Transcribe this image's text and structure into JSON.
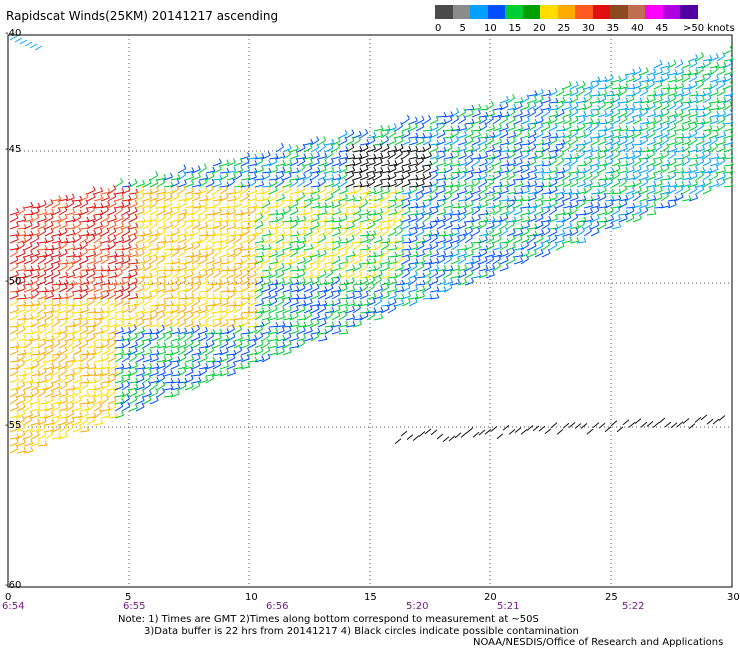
{
  "header": {
    "title": "Rapidscat Winds(25KM) 20141217 ascending"
  },
  "legend": {
    "colors": [
      "#4a4a4a",
      "#8c8c8c",
      "#00a0ff",
      "#0050ff",
      "#00cc33",
      "#00a000",
      "#ffdd00",
      "#ffaa00",
      "#ff5a20",
      "#e01010",
      "#8c4a20",
      "#c07050",
      "#ff00ff",
      "#b000e0",
      "#5000a0"
    ],
    "labels": [
      "0",
      "5",
      "10",
      "15",
      "20",
      "25",
      "30",
      "35",
      "40",
      "45",
      ">50 knots"
    ],
    "label_positions": [
      0,
      2,
      4,
      6,
      8,
      10,
      12,
      14,
      16,
      18,
      20
    ]
  },
  "axes": {
    "y_labels": [
      "-40",
      "-45",
      "-50",
      "-55",
      "-60"
    ],
    "x_labels": [
      "0",
      "5",
      "10",
      "15",
      "20",
      "25",
      "30"
    ],
    "time_labels": [
      "6:54",
      "6:55",
      "6:56",
      "5:20",
      "5:21",
      "5:22"
    ]
  },
  "notes": {
    "line1": "Note: 1) Times are GMT 2)Times along bottom correspond to measurement at ~50S",
    "line2": "3)Data buffer is 22 hrs from 20141217 4) Black circles indicate possible contamination",
    "credit": "NOAA/NESDIS/Office of Research and Applications"
  }
}
